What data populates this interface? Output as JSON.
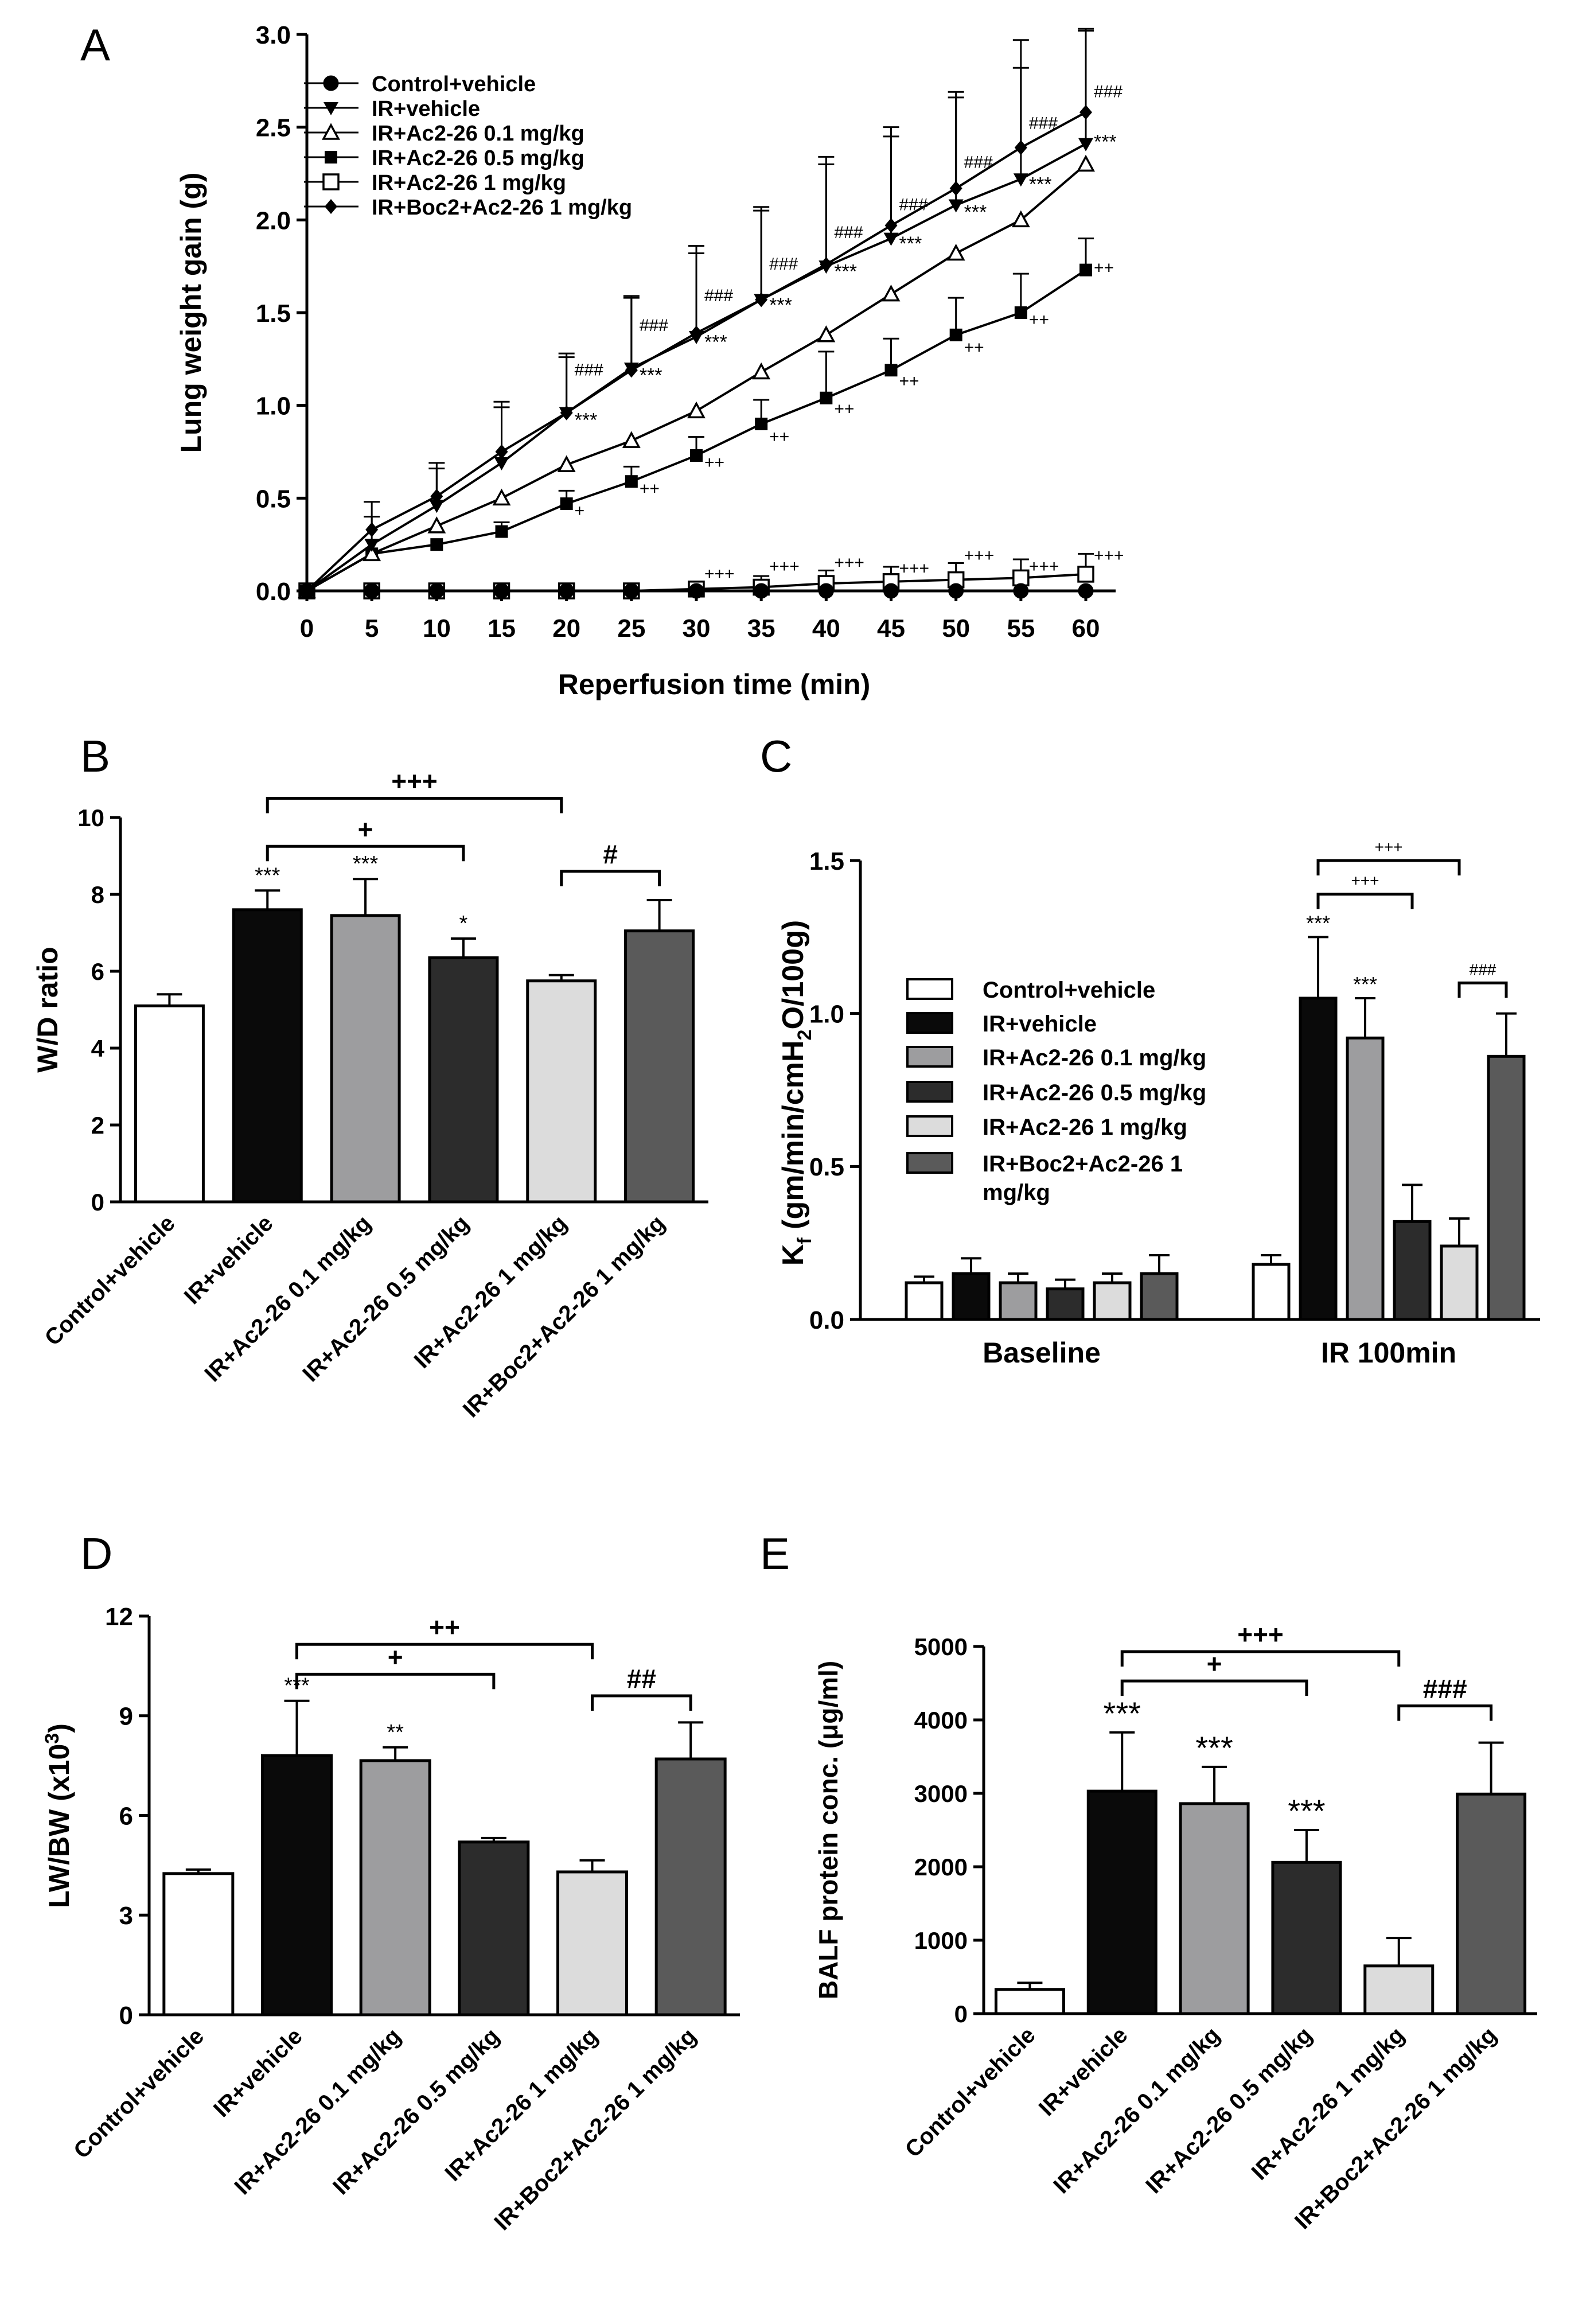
{
  "figure": {
    "panel_letters": [
      "A",
      "B",
      "C",
      "D",
      "E"
    ],
    "colors": {
      "control": "#ffffff",
      "ir_vehicle": "#0a0a0a",
      "ac_01": "#9d9d9f",
      "ac_05": "#2c2c2c",
      "ac_1": "#dcdcdc",
      "boc": "#5a5a5a",
      "stroke": "#000000"
    }
  },
  "chart_data": [
    {
      "panel": "A",
      "type": "line",
      "title": "",
      "xlabel": "Reperfusion time (min)",
      "ylabel": "Lung weight gain (g)",
      "x": [
        0,
        5,
        10,
        15,
        20,
        25,
        30,
        35,
        40,
        45,
        50,
        55,
        60
      ],
      "xlim": [
        0,
        60
      ],
      "ylim": [
        0,
        3.0
      ],
      "yticks": [
        0.0,
        0.5,
        1.0,
        1.5,
        2.0,
        2.5,
        3.0
      ],
      "ytick_labels": [
        "0.0",
        "0.5",
        "1.0",
        "1.5",
        "2.0",
        "2.5",
        "3.0"
      ],
      "xtick_labels": [
        "0",
        "5",
        "10",
        "15",
        "20",
        "25",
        "30",
        "35",
        "40",
        "45",
        "50",
        "55",
        "60"
      ],
      "legend": "top-left",
      "series": [
        {
          "name": "Control+vehicle",
          "marker": "circle-filled",
          "values": [
            0,
            0,
            0,
            0,
            0,
            0,
            0,
            0,
            0,
            0,
            0,
            0,
            0
          ],
          "errors": [
            0,
            0,
            0,
            0,
            0,
            0,
            0,
            0,
            0,
            0,
            0,
            0,
            0
          ]
        },
        {
          "name": "IR+vehicle",
          "marker": "triangle-down-filled",
          "values": [
            0,
            0.25,
            0.46,
            0.69,
            0.96,
            1.2,
            1.37,
            1.57,
            1.75,
            1.9,
            2.08,
            2.22,
            2.41
          ],
          "errors": [
            0,
            0.15,
            0.2,
            0.3,
            0.3,
            0.38,
            0.45,
            0.48,
            0.55,
            0.55,
            0.58,
            0.6,
            0.62
          ]
        },
        {
          "name": "IR+Ac2-26 0.1 mg/kg",
          "marker": "triangle-up-open",
          "values": [
            0,
            0.2,
            0.35,
            0.5,
            0.68,
            0.81,
            0.97,
            1.18,
            1.38,
            1.6,
            1.82,
            2.0,
            2.3
          ],
          "errors": [
            0,
            0,
            0,
            0,
            0,
            0,
            0,
            0,
            0,
            0,
            0,
            0,
            0
          ]
        },
        {
          "name": "IR+Ac2-26 0.5 mg/kg",
          "marker": "square-filled",
          "values": [
            0,
            0.2,
            0.25,
            0.32,
            0.47,
            0.59,
            0.73,
            0.9,
            1.04,
            1.19,
            1.38,
            1.5,
            1.73
          ],
          "errors": [
            0,
            0,
            0,
            0.05,
            0.07,
            0.08,
            0.1,
            0.13,
            0.25,
            0.17,
            0.2,
            0.21,
            0.17
          ]
        },
        {
          "name": "IR+Ac2-26 1 mg/kg",
          "marker": "square-open",
          "values": [
            0,
            0,
            0,
            0,
            0,
            0,
            0.01,
            0.02,
            0.04,
            0.05,
            0.06,
            0.07,
            0.09
          ],
          "errors": [
            0,
            0,
            0,
            0,
            0,
            0,
            0.04,
            0.06,
            0.07,
            0.08,
            0.09,
            0.1,
            0.11
          ]
        },
        {
          "name": "IR+Boc2+Ac2-26 1 mg/kg",
          "marker": "diamond-filled",
          "values": [
            0,
            0.33,
            0.51,
            0.75,
            0.96,
            1.19,
            1.39,
            1.57,
            1.76,
            1.97,
            2.17,
            2.39,
            2.58
          ],
          "errors": [
            0,
            0.15,
            0.18,
            0.27,
            0.32,
            0.4,
            0.47,
            0.5,
            0.58,
            0.53,
            0.52,
            0.58,
            0.44
          ]
        }
      ],
      "annotations": [
        {
          "text": "###",
          "x": 20,
          "y": 1.18,
          "series": "IR+Boc2+Ac2-26 1 mg/kg"
        },
        {
          "text": "###",
          "x": 25,
          "y": 1.42,
          "series": "IR+Boc2+Ac2-26 1 mg/kg"
        },
        {
          "text": "###",
          "x": 30,
          "y": 1.58,
          "series": "IR+Boc2+Ac2-26 1 mg/kg"
        },
        {
          "text": "###",
          "x": 35,
          "y": 1.75,
          "series": "IR+Boc2+Ac2-26 1 mg/kg"
        },
        {
          "text": "###",
          "x": 40,
          "y": 1.92,
          "series": "IR+Boc2+Ac2-26 1 mg/kg"
        },
        {
          "text": "###",
          "x": 45,
          "y": 2.07,
          "series": "IR+Boc2+Ac2-26 1 mg/kg"
        },
        {
          "text": "###",
          "x": 50,
          "y": 2.3,
          "series": "IR+Boc2+Ac2-26 1 mg/kg"
        },
        {
          "text": "###",
          "x": 55,
          "y": 2.51,
          "series": "IR+Boc2+Ac2-26 1 mg/kg"
        },
        {
          "text": "###",
          "x": 60,
          "y": 2.68,
          "series": "IR+Boc2+Ac2-26 1 mg/kg"
        },
        {
          "text": "***",
          "x": 20,
          "y": 0.93,
          "series": "IR+vehicle"
        },
        {
          "text": "***",
          "x": 25,
          "y": 1.17,
          "series": "IR+vehicle"
        },
        {
          "text": "***",
          "x": 30,
          "y": 1.35,
          "series": "IR+vehicle"
        },
        {
          "text": "***",
          "x": 35,
          "y": 1.55,
          "series": "IR+vehicle"
        },
        {
          "text": "***",
          "x": 40,
          "y": 1.73,
          "series": "IR+vehicle"
        },
        {
          "text": "***",
          "x": 45,
          "y": 1.88,
          "series": "IR+vehicle"
        },
        {
          "text": "***",
          "x": 50,
          "y": 2.05,
          "series": "IR+vehicle"
        },
        {
          "text": "***",
          "x": 55,
          "y": 2.2,
          "series": "IR+vehicle"
        },
        {
          "text": "***",
          "x": 60,
          "y": 2.43,
          "series": "IR+vehicle"
        },
        {
          "text": "+",
          "x": 20,
          "y": 0.42,
          "series": "IR+Ac2-26 0.5 mg/kg"
        },
        {
          "text": "++",
          "x": 25,
          "y": 0.54,
          "series": "IR+Ac2-26 0.5 mg/kg"
        },
        {
          "text": "++",
          "x": 30,
          "y": 0.68,
          "series": "IR+Ac2-26 0.5 mg/kg"
        },
        {
          "text": "++",
          "x": 35,
          "y": 0.82,
          "series": "IR+Ac2-26 0.5 mg/kg"
        },
        {
          "text": "++",
          "x": 40,
          "y": 0.97,
          "series": "IR+Ac2-26 0.5 mg/kg"
        },
        {
          "text": "++",
          "x": 45,
          "y": 1.12,
          "series": "IR+Ac2-26 0.5 mg/kg"
        },
        {
          "text": "++",
          "x": 50,
          "y": 1.3,
          "series": "IR+Ac2-26 0.5 mg/kg"
        },
        {
          "text": "++",
          "x": 55,
          "y": 1.45,
          "series": "IR+Ac2-26 0.5 mg/kg"
        },
        {
          "text": "++",
          "x": 60,
          "y": 1.73,
          "series": "IR+Ac2-26 0.5 mg/kg"
        },
        {
          "text": "+++",
          "x": 30,
          "y": 0.08,
          "series": "IR+Ac2-26 1 mg/kg"
        },
        {
          "text": "+++",
          "x": 35,
          "y": 0.12,
          "series": "IR+Ac2-26 1 mg/kg"
        },
        {
          "text": "+++",
          "x": 40,
          "y": 0.14,
          "series": "IR+Ac2-26 1 mg/kg"
        },
        {
          "text": "+++",
          "x": 45,
          "y": 0.11,
          "series": "IR+Ac2-26 1 mg/kg"
        },
        {
          "text": "+++",
          "x": 50,
          "y": 0.18,
          "series": "IR+Ac2-26 1 mg/kg"
        },
        {
          "text": "+++",
          "x": 55,
          "y": 0.12,
          "series": "IR+Ac2-26 1 mg/kg"
        },
        {
          "text": "+++",
          "x": 60,
          "y": 0.18,
          "series": "IR+Ac2-26 1 mg/kg"
        }
      ]
    },
    {
      "panel": "B",
      "type": "bar",
      "title": "",
      "xlabel": "",
      "ylabel": "W/D ratio",
      "ylim": [
        0,
        10
      ],
      "yticks": [
        0,
        2,
        4,
        6,
        8,
        10
      ],
      "ytick_labels": [
        "0",
        "2",
        "4",
        "6",
        "8",
        "10"
      ],
      "categories": [
        "Control+vehicle",
        "IR+vehicle",
        "IR+Ac2-26 0.1 mg/kg",
        "IR+Ac2-26 0.5 mg/kg",
        "IR+Ac2-26 1 mg/kg",
        "IR+Boc2+Ac2-26 1 mg/kg"
      ],
      "values": [
        5.1,
        7.6,
        7.45,
        6.35,
        5.75,
        7.05
      ],
      "errors": [
        0.3,
        0.5,
        0.95,
        0.5,
        0.15,
        0.8
      ],
      "stars": [
        "",
        "***",
        "***",
        "*",
        "",
        ""
      ],
      "brackets": [
        {
          "from": 1,
          "to": 3,
          "label": "+",
          "y": 9.25
        },
        {
          "from": 1,
          "to": 4,
          "label": "+++",
          "y": 10.5
        },
        {
          "from": 4,
          "to": 5,
          "label": "#",
          "y": 8.6
        }
      ]
    },
    {
      "panel": "C",
      "type": "bar",
      "title": "",
      "xlabel": "",
      "ylabel_main": "K",
      "ylabel_sub": "f",
      "ylabel_rest": " (gm/min/cmH",
      "ylabel_sub2": "2",
      "ylabel_tail": "O/100g)",
      "ylim": [
        0,
        1.5
      ],
      "yticks": [
        0.0,
        0.5,
        1.0,
        1.5
      ],
      "ytick_labels": [
        "0.0",
        "0.5",
        "1.0",
        "1.5"
      ],
      "groups": [
        "Baseline",
        "IR 100min"
      ],
      "legend": "center-left",
      "legend_labels": [
        "Control+vehicle",
        "IR+vehicle",
        "IR+Ac2-26 0.1 mg/kg",
        "IR+Ac2-26 0.5 mg/kg",
        "IR+Ac2-26 1 mg/kg",
        "IR+Boc2+Ac2-26 1",
        "mg/kg"
      ],
      "series": [
        {
          "name": "Control+vehicle",
          "values": [
            0.12,
            0.18
          ],
          "errors": [
            0.02,
            0.03
          ]
        },
        {
          "name": "IR+vehicle",
          "values": [
            0.15,
            1.05
          ],
          "errors": [
            0.05,
            0.2
          ]
        },
        {
          "name": "IR+Ac2-26 0.1 mg/kg",
          "values": [
            0.12,
            0.92
          ],
          "errors": [
            0.03,
            0.13
          ]
        },
        {
          "name": "IR+Ac2-26 0.5 mg/kg",
          "values": [
            0.1,
            0.32
          ],
          "errors": [
            0.03,
            0.12
          ]
        },
        {
          "name": "IR+Ac2-26 1 mg/kg",
          "values": [
            0.12,
            0.24
          ],
          "errors": [
            0.03,
            0.09
          ]
        },
        {
          "name": "IR+Boc2+Ac2-26 1 mg/kg",
          "values": [
            0.15,
            0.86
          ],
          "errors": [
            0.06,
            0.14
          ]
        }
      ],
      "stars": [
        "",
        "***",
        "***",
        "",
        "",
        ""
      ],
      "brackets": [
        {
          "from": 1,
          "to": 3,
          "label": "+++",
          "y": 1.39
        },
        {
          "from": 1,
          "to": 4,
          "label": "+++",
          "y": 1.5
        },
        {
          "from": 4,
          "to": 5,
          "label": "###",
          "y": 1.1
        }
      ]
    },
    {
      "panel": "D",
      "type": "bar",
      "title": "",
      "xlabel": "",
      "ylabel_main": "LW/BW (x10",
      "ylabel_sup": "3",
      "ylabel_tail": ")",
      "ylim": [
        0,
        12
      ],
      "yticks": [
        0,
        3,
        6,
        9,
        12
      ],
      "ytick_labels": [
        "0",
        "3",
        "6",
        "9",
        "12"
      ],
      "categories": [
        "Control+vehicle",
        "IR+vehicle",
        "IR+Ac2-26 0.1 mg/kg",
        "IR+Ac2-26 0.5 mg/kg",
        "IR+Ac2-26 1 mg/kg",
        "IR+Boc2+Ac2-26 1 mg/kg"
      ],
      "values": [
        4.25,
        7.8,
        7.65,
        5.2,
        4.3,
        7.7
      ],
      "errors": [
        0.12,
        1.65,
        0.4,
        0.12,
        0.35,
        1.1
      ],
      "stars": [
        "",
        "***",
        "**",
        "",
        "",
        ""
      ],
      "brackets": [
        {
          "from": 1,
          "to": 3,
          "label": "+",
          "y": 10.25
        },
        {
          "from": 1,
          "to": 4,
          "label": "++",
          "y": 11.15
        },
        {
          "from": 4,
          "to": 5,
          "label": "##",
          "y": 9.6
        }
      ]
    },
    {
      "panel": "E",
      "type": "bar",
      "title": "",
      "xlabel": "",
      "ylabel": "BALF protein conc. (μg/ml)",
      "ylim": [
        0,
        5000
      ],
      "yticks": [
        0,
        1000,
        2000,
        3000,
        4000,
        5000
      ],
      "ytick_labels": [
        "0",
        "1000",
        "2000",
        "3000",
        "4000",
        "5000"
      ],
      "categories": [
        "Control+vehicle",
        "IR+vehicle",
        "IR+Ac2-26 0.1 mg/kg",
        "IR+Ac2-26 0.5 mg/kg",
        "IR+Ac2-26 1 mg/kg",
        "IR+Boc2+Ac2-26 1 mg/kg"
      ],
      "values": [
        330,
        3030,
        2860,
        2060,
        650,
        2990
      ],
      "errors": [
        90,
        800,
        500,
        440,
        380,
        700
      ],
      "stars": [
        "",
        "***",
        "***",
        "***",
        "",
        ""
      ],
      "brackets": [
        {
          "from": 1,
          "to": 3,
          "label": "+",
          "y": 4530
        },
        {
          "from": 1,
          "to": 4,
          "label": "+++",
          "y": 4930
        },
        {
          "from": 4,
          "to": 5,
          "label": "###",
          "y": 4190
        }
      ]
    }
  ]
}
